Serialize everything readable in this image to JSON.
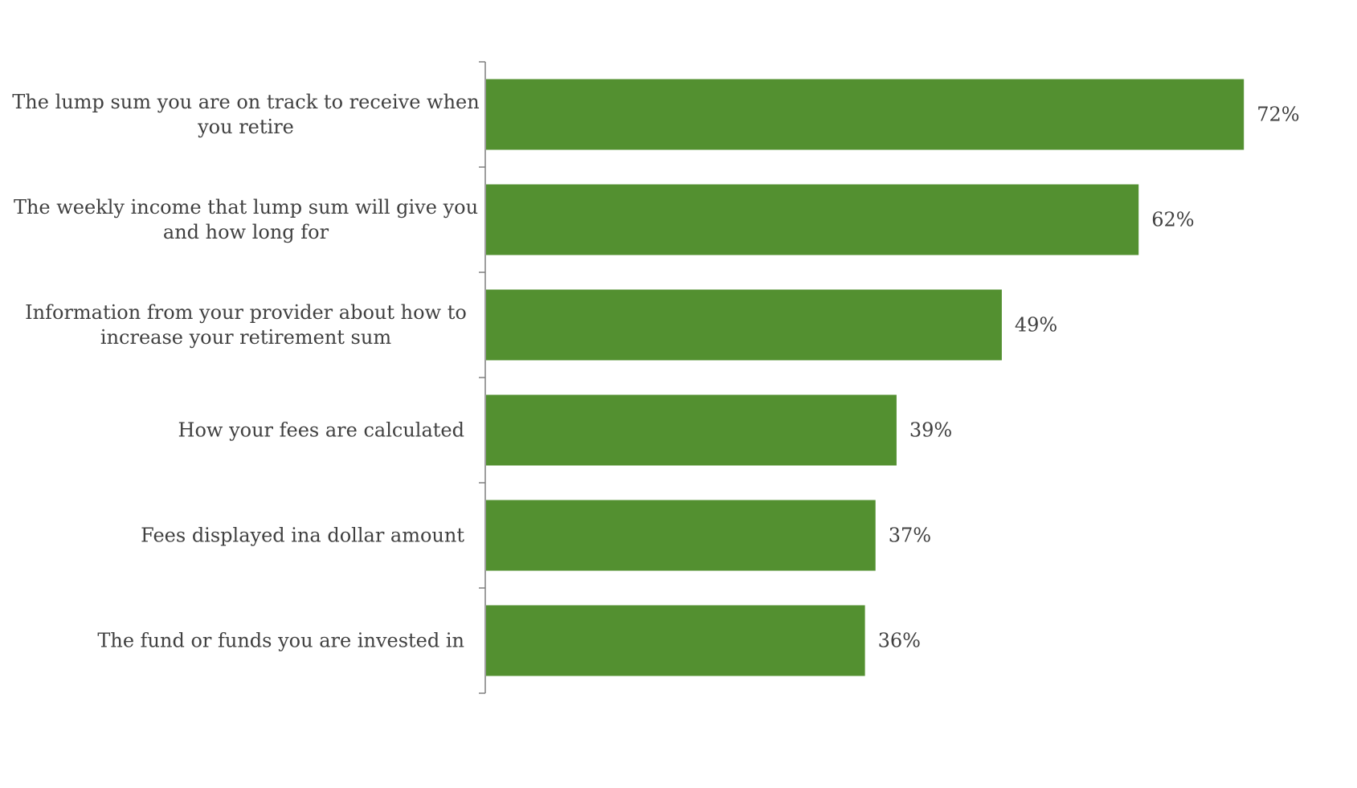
{
  "chart_data": {
    "type": "bar",
    "orientation": "horizontal",
    "categories": [
      [
        "The lump sum you are on track to receive when",
        "you retire"
      ],
      [
        "The weekly income that lump sum will give you",
        "and how long for"
      ],
      [
        "Information from your provider about how to",
        "increase your retirement sum"
      ],
      [
        "How your fees are calculated"
      ],
      [
        "Fees displayed ina  dollar amount"
      ],
      [
        "The fund or funds you are invested in"
      ]
    ],
    "values": [
      72,
      62,
      49,
      39,
      37,
      36
    ],
    "value_labels": [
      "72%",
      "62%",
      "49%",
      "39%",
      "37%",
      "36%"
    ],
    "unit": "%",
    "xlim": [
      0,
      100
    ],
    "grid": false,
    "legend": "none",
    "bar_color": "#539030"
  }
}
